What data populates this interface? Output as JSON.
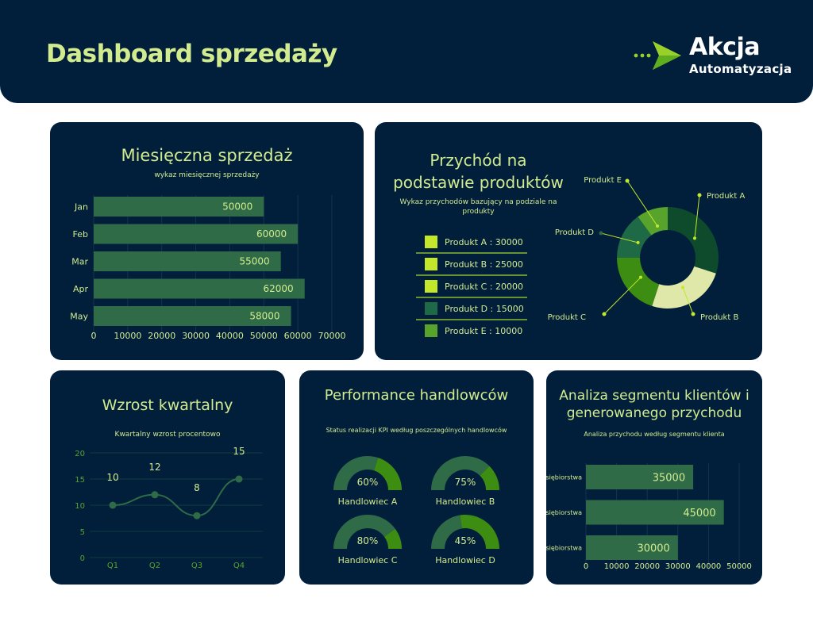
{
  "header": {
    "title": "Dashboard sprzedaży",
    "logo_line1": "Akcja",
    "logo_line2": "Automatyzacja"
  },
  "colors": {
    "navy": "#011f3b",
    "lime": "#d2eb8f",
    "bar_green": "#2e6b46",
    "dark_green": "#0e4b2d",
    "pale_green": "#dfe8a8",
    "mid_green": "#3d8d12",
    "teal_green": "#1f6a46",
    "light_green": "#58a32c",
    "swatch_lime": "#c3e82b"
  },
  "monthly": {
    "title": "Miesięczna sprzedaż",
    "subtitle": "wykaz miesięcznej sprzedaży"
  },
  "products": {
    "title_line1": "Przychód na",
    "title_line2": "podstawie produktów",
    "subtitle_line1": "Wykaz przychodów bazujący na podziale na",
    "subtitle_line2": "produkty",
    "legend": [
      "Produkt A : 30000",
      "Produkt B : 25000",
      "Produkt C : 20000",
      "Produkt D : 15000",
      "Produkt E : 10000"
    ]
  },
  "quarterly": {
    "title": "Wzrost kwartalny",
    "subtitle": "Kwartalny wzrost procentowo"
  },
  "performance": {
    "title": "Performance handlowców",
    "subtitle": "Status realizacji KPI według poszczególnych handlowców"
  },
  "segments": {
    "title_line1": "Analiza segmentu klientów i",
    "title_line2": "generowanego przychodu",
    "subtitle": "Analiza przychodu według segmentu klienta"
  },
  "chart_data": [
    {
      "type": "bar",
      "orientation": "horizontal",
      "categories": [
        "Jan",
        "Feb",
        "Mar",
        "Apr",
        "May"
      ],
      "values": [
        50000,
        60000,
        55000,
        62000,
        58000
      ],
      "title": "Miesięczna sprzedaż",
      "xlim": [
        0,
        70000
      ],
      "xticks": [
        "0",
        "10000",
        "20000",
        "30000",
        "40000",
        "50000",
        "60000",
        "70000"
      ]
    },
    {
      "type": "pie",
      "style": "donut",
      "categories": [
        "Produkt A",
        "Produkt B",
        "Produkt C",
        "Produkt D",
        "Produkt E"
      ],
      "values": [
        30000,
        25000,
        20000,
        15000,
        10000
      ],
      "title": "Przychód na podstawie produktów"
    },
    {
      "type": "line",
      "categories": [
        "Q1",
        "Q2",
        "Q3",
        "Q4"
      ],
      "values": [
        10,
        12,
        8,
        15
      ],
      "title": "Wzrost kwartalny",
      "ylim": [
        0,
        20
      ],
      "yticks": [
        "0",
        "5",
        "10",
        "15",
        "20"
      ]
    },
    {
      "type": "gauge",
      "categories": [
        "Handlowiec A",
        "Handlowiec B",
        "Handlowiec C",
        "Handlowiec D"
      ],
      "values": [
        60,
        75,
        80,
        45
      ],
      "labels": [
        "60%",
        "75%",
        "80%",
        "45%"
      ],
      "title": "Performance handlowców"
    },
    {
      "type": "bar",
      "orientation": "horizontal",
      "categories": [
        "Małe przedsiębiorstwa",
        "Średnie przedsiębiorstwa",
        "Duże przedsiębiorstwa"
      ],
      "values": [
        35000,
        45000,
        30000
      ],
      "title": "Analiza segmentu klientów i generowanego przychodu",
      "xlim": [
        0,
        50000
      ],
      "xticks": [
        "0",
        "10000",
        "20000",
        "30000",
        "40000",
        "50000"
      ]
    }
  ]
}
